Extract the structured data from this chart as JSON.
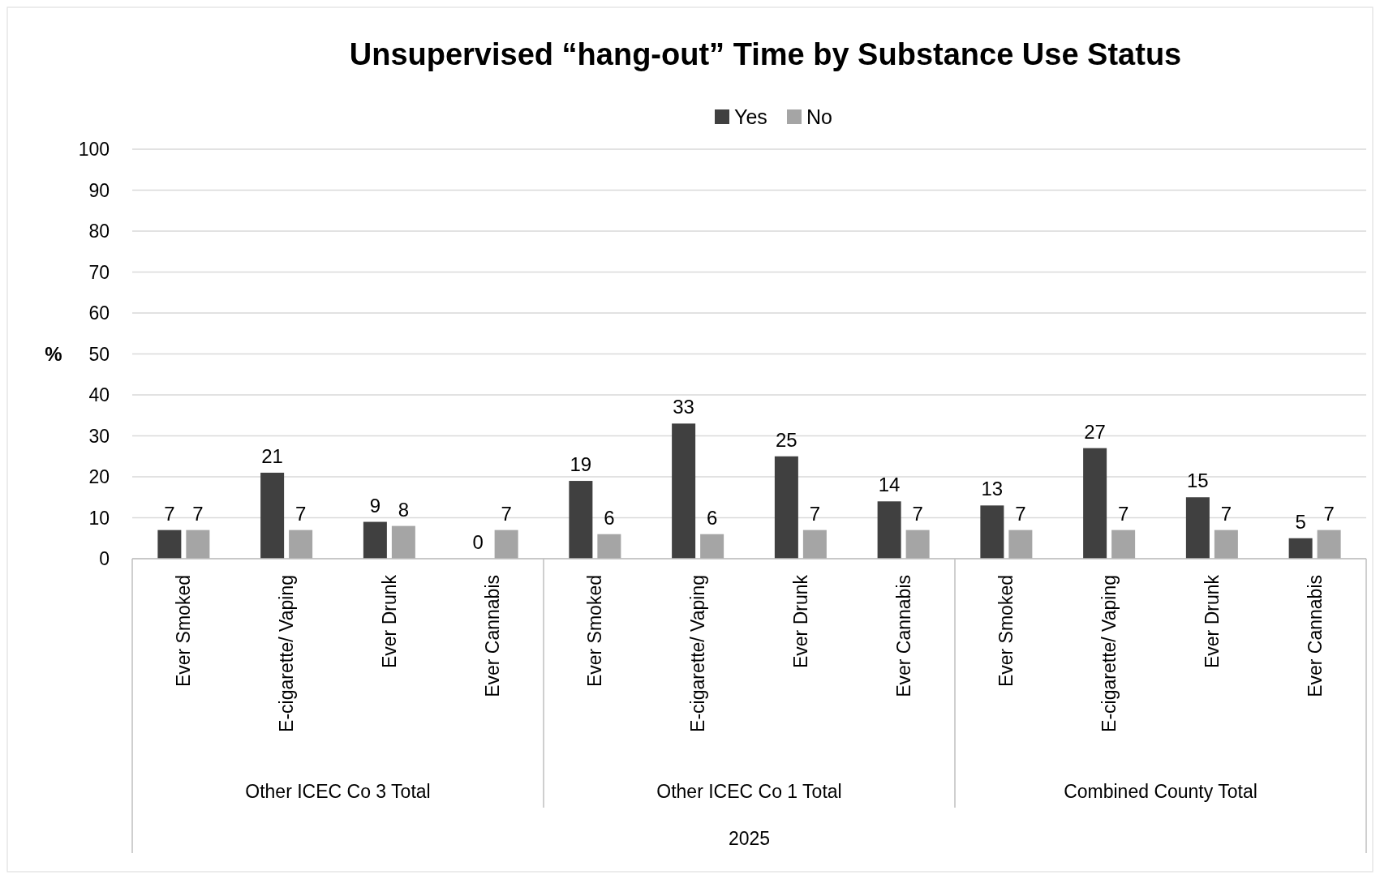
{
  "chart_data": {
    "type": "bar",
    "title": "Unsupervised “hang-out” Time by Substance Use Status",
    "ylabel": "%",
    "categories": [
      "Ever Smoked",
      "E-cigarette/ Vaping",
      "Ever Drunk",
      "Ever Cannabis",
      "Ever Smoked",
      "E-cigarette/ Vaping",
      "Ever Drunk",
      "Ever Cannabis",
      "Ever Smoked",
      "E-cigarette/ Vaping",
      "Ever Drunk",
      "Ever Cannabis"
    ],
    "series": [
      {
        "name": "Yes",
        "color": "#404040",
        "values": [
          7,
          21,
          9,
          0,
          19,
          33,
          25,
          14,
          13,
          27,
          15,
          5
        ]
      },
      {
        "name": "No",
        "color": "#a5a5a5",
        "values": [
          7,
          7,
          8,
          7,
          6,
          6,
          7,
          7,
          7,
          7,
          7,
          7
        ]
      }
    ],
    "ylim": [
      0,
      100
    ],
    "yticks": [
      0,
      10,
      20,
      30,
      40,
      50,
      60,
      70,
      80,
      90,
      100
    ],
    "grid": "y",
    "legend": "top",
    "data_labels": true,
    "annotations": [
      "Other ICEC Co 3 Total",
      "Other ICEC Co 1 Total",
      "Combined County Total",
      "2025"
    ]
  }
}
